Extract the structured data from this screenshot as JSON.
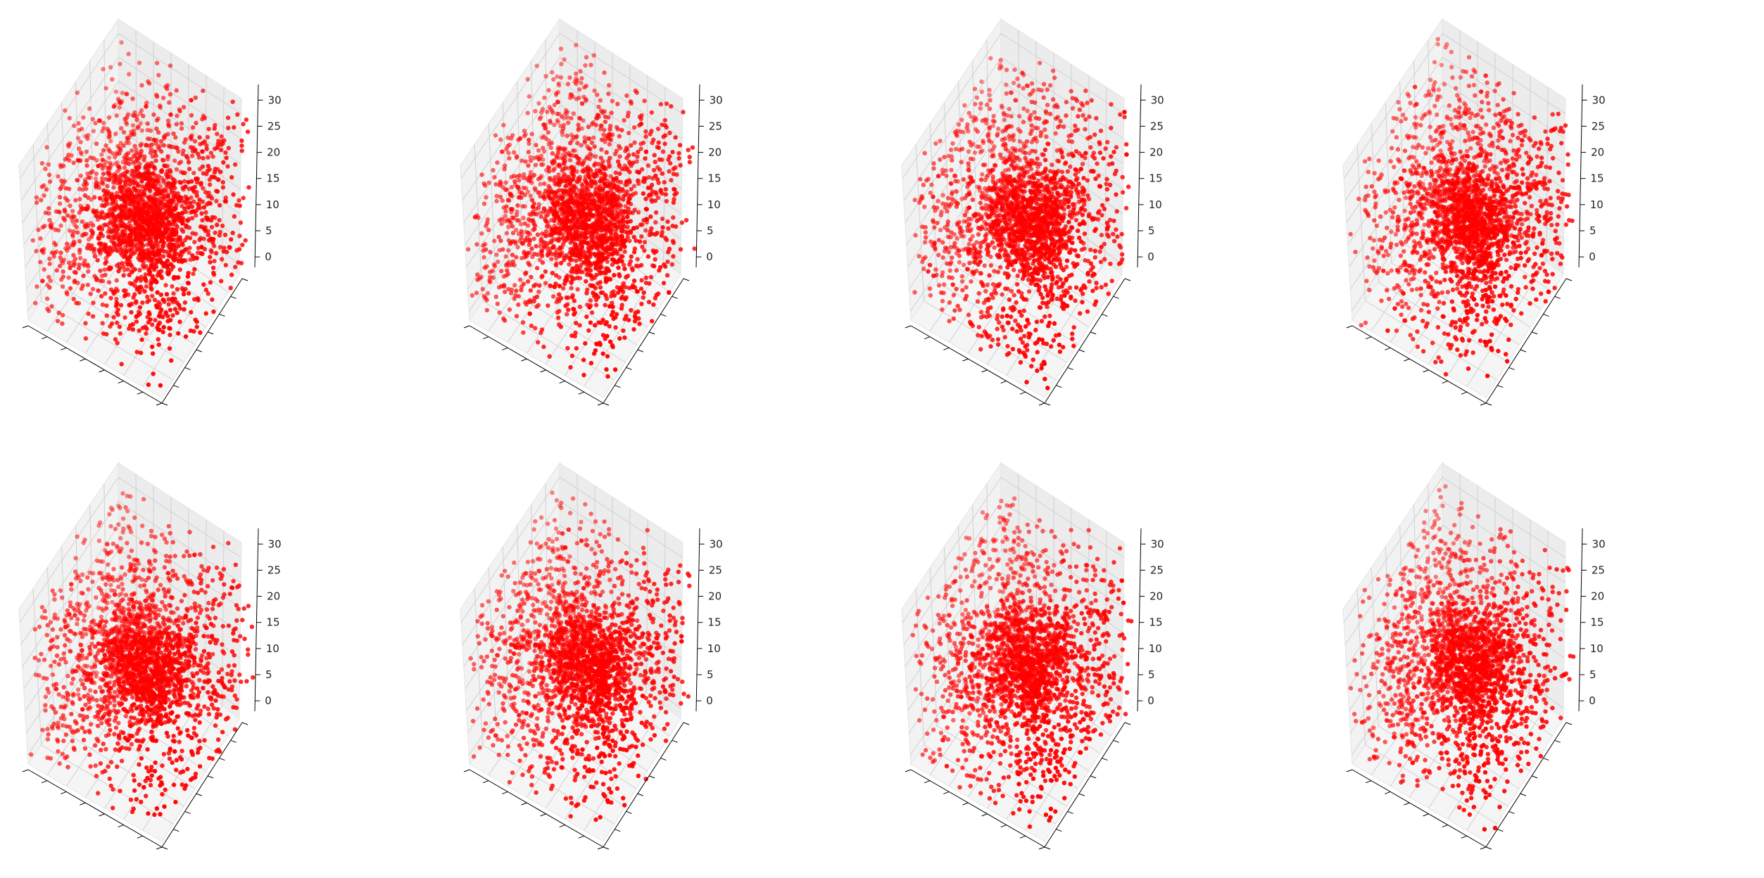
{
  "figure": {
    "layout": "2x4 grid of 3D scatter subplots",
    "marker_color": "#ff0000",
    "pane_color": "#f2f2f2",
    "grid_color": "#d0d0d0"
  },
  "chart_data": [
    {
      "id": "panel-1",
      "type": "scatter",
      "projection": "3d",
      "title": "",
      "xlabel": "",
      "ylabel": "",
      "zlabel": "",
      "x_tick_labels_visible": false,
      "y_tick_labels_visible": false,
      "zlim": [
        -2,
        33
      ],
      "zticks": [
        "0",
        "5",
        "10",
        "15",
        "20",
        "25",
        "30"
      ],
      "grid": true,
      "series": [
        {
          "marker": "o",
          "color": "#ff0000",
          "approx_points": 2200,
          "seed": 1
        }
      ]
    },
    {
      "id": "panel-2",
      "type": "scatter",
      "projection": "3d",
      "title": "",
      "xlabel": "",
      "ylabel": "",
      "zlabel": "",
      "x_tick_labels_visible": false,
      "y_tick_labels_visible": false,
      "zlim": [
        -2,
        33
      ],
      "zticks": [
        "0",
        "5",
        "10",
        "15",
        "20",
        "25",
        "30"
      ],
      "grid": true,
      "series": [
        {
          "marker": "o",
          "color": "#ff0000",
          "approx_points": 2200,
          "seed": 2
        }
      ]
    },
    {
      "id": "panel-3",
      "type": "scatter",
      "projection": "3d",
      "title": "",
      "xlabel": "",
      "ylabel": "",
      "zlabel": "",
      "x_tick_labels_visible": false,
      "y_tick_labels_visible": false,
      "zlim": [
        -2,
        33
      ],
      "zticks": [
        "0",
        "5",
        "10",
        "15",
        "20",
        "25",
        "30"
      ],
      "grid": true,
      "series": [
        {
          "marker": "o",
          "color": "#ff0000",
          "approx_points": 2200,
          "seed": 3
        }
      ]
    },
    {
      "id": "panel-4",
      "type": "scatter",
      "projection": "3d",
      "title": "",
      "xlabel": "",
      "ylabel": "",
      "zlabel": "",
      "x_tick_labels_visible": false,
      "y_tick_labels_visible": false,
      "zlim": [
        -2,
        33
      ],
      "zticks": [
        "0",
        "5",
        "10",
        "15",
        "20",
        "25",
        "30"
      ],
      "grid": true,
      "series": [
        {
          "marker": "o",
          "color": "#ff0000",
          "approx_points": 2200,
          "seed": 4
        }
      ]
    },
    {
      "id": "panel-5",
      "type": "scatter",
      "projection": "3d",
      "title": "",
      "xlabel": "",
      "ylabel": "",
      "zlabel": "",
      "x_tick_labels_visible": false,
      "y_tick_labels_visible": false,
      "zlim": [
        -2,
        33
      ],
      "zticks": [
        "0",
        "5",
        "10",
        "15",
        "20",
        "25",
        "30"
      ],
      "grid": true,
      "series": [
        {
          "marker": "o",
          "color": "#ff0000",
          "approx_points": 2200,
          "seed": 5
        }
      ]
    },
    {
      "id": "panel-6",
      "type": "scatter",
      "projection": "3d",
      "title": "",
      "xlabel": "",
      "ylabel": "",
      "zlabel": "",
      "x_tick_labels_visible": false,
      "y_tick_labels_visible": false,
      "zlim": [
        -2,
        33
      ],
      "zticks": [
        "0",
        "5",
        "10",
        "15",
        "20",
        "25",
        "30"
      ],
      "grid": true,
      "series": [
        {
          "marker": "o",
          "color": "#ff0000",
          "approx_points": 2200,
          "seed": 6
        }
      ]
    },
    {
      "id": "panel-7",
      "type": "scatter",
      "projection": "3d",
      "title": "",
      "xlabel": "",
      "ylabel": "",
      "zlabel": "",
      "x_tick_labels_visible": false,
      "y_tick_labels_visible": false,
      "zlim": [
        -2,
        33
      ],
      "zticks": [
        "0",
        "5",
        "10",
        "15",
        "20",
        "25",
        "30"
      ],
      "grid": true,
      "series": [
        {
          "marker": "o",
          "color": "#ff0000",
          "approx_points": 2200,
          "seed": 7
        }
      ]
    },
    {
      "id": "panel-8",
      "type": "scatter",
      "projection": "3d",
      "title": "",
      "xlabel": "",
      "ylabel": "",
      "zlabel": "",
      "x_tick_labels_visible": false,
      "y_tick_labels_visible": false,
      "zlim": [
        -2,
        33
      ],
      "zticks": [
        "0",
        "5",
        "10",
        "15",
        "20",
        "25",
        "30"
      ],
      "grid": true,
      "series": [
        {
          "marker": "o",
          "color": "#ff0000",
          "approx_points": 2200,
          "seed": 8
        }
      ]
    }
  ]
}
